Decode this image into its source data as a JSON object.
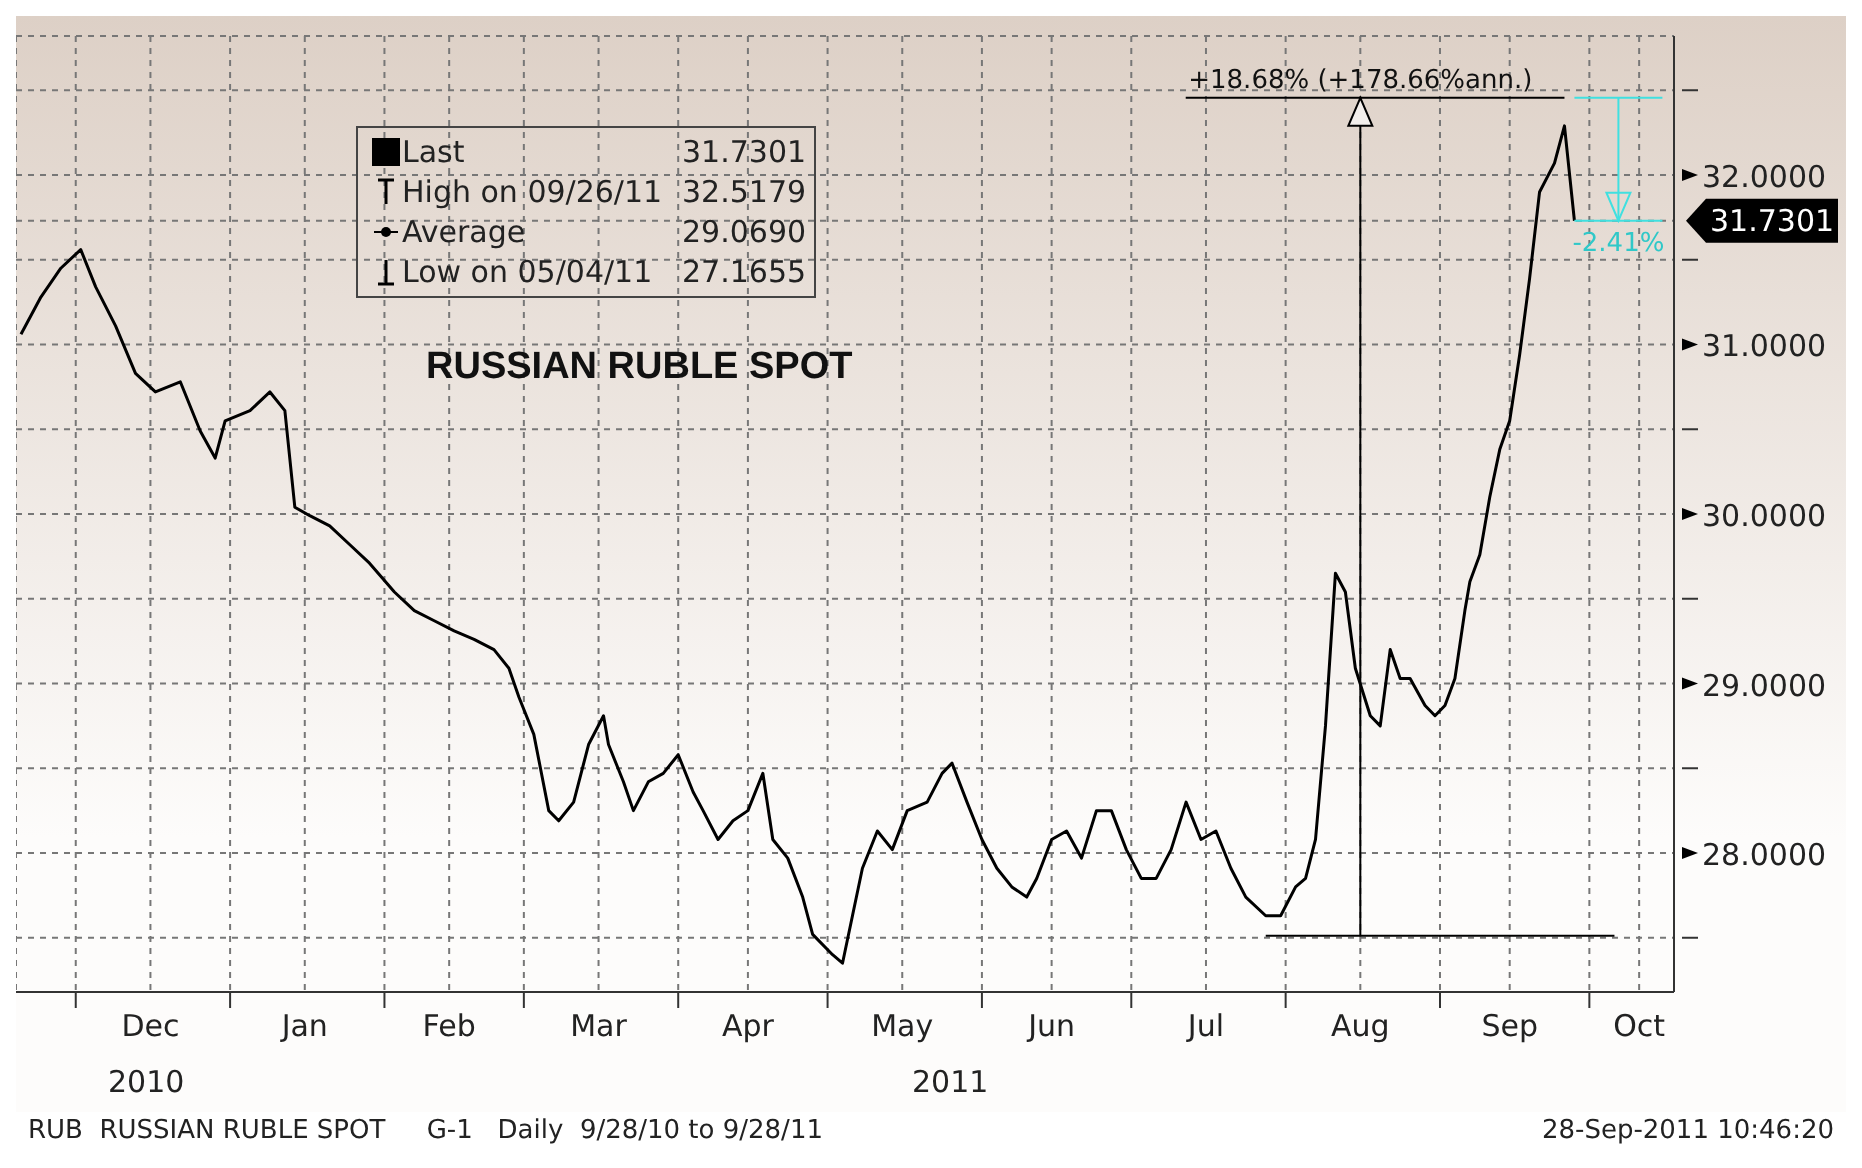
{
  "chart_data": {
    "type": "line",
    "title": "RUSSIAN RUBLE SPOT",
    "color": "#000000",
    "marker": "none",
    "grid": true,
    "x": [
      "2010-11-20",
      "2010-11-24",
      "2010-11-28",
      "2010-12-02",
      "2010-12-05",
      "2010-12-09",
      "2010-12-13",
      "2010-12-17",
      "2010-12-22",
      "2010-12-26",
      "2010-12-29",
      "2010-12-31",
      "2011-01-05",
      "2011-01-09",
      "2011-01-12",
      "2011-01-14",
      "2011-01-17",
      "2011-01-21",
      "2011-01-25",
      "2011-01-29",
      "2011-02-03",
      "2011-02-07",
      "2011-02-11",
      "2011-02-15",
      "2011-02-19",
      "2011-02-23",
      "2011-02-26",
      "2011-02-28",
      "2011-03-03",
      "2011-03-06",
      "2011-03-08",
      "2011-03-11",
      "2011-03-14",
      "2011-03-17",
      "2011-03-18",
      "2011-03-21",
      "2011-03-23",
      "2011-03-26",
      "2011-03-29",
      "2011-04-01",
      "2011-04-04",
      "2011-04-06",
      "2011-04-09",
      "2011-04-12",
      "2011-04-15",
      "2011-04-18",
      "2011-04-20",
      "2011-04-23",
      "2011-04-26",
      "2011-04-28",
      "2011-05-02",
      "2011-05-04",
      "2011-05-06",
      "2011-05-08",
      "2011-05-11",
      "2011-05-14",
      "2011-05-17",
      "2011-05-21",
      "2011-05-24",
      "2011-05-26",
      "2011-05-29",
      "2011-06-01",
      "2011-06-04",
      "2011-06-07",
      "2011-06-10",
      "2011-06-12",
      "2011-06-15",
      "2011-06-18",
      "2011-06-21",
      "2011-06-24",
      "2011-06-27",
      "2011-06-30",
      "2011-07-03",
      "2011-07-06",
      "2011-07-09",
      "2011-07-12",
      "2011-07-15",
      "2011-07-18",
      "2011-07-21",
      "2011-07-24",
      "2011-07-28",
      "2011-07-31",
      "2011-08-03",
      "2011-08-05",
      "2011-08-07",
      "2011-08-09",
      "2011-08-11",
      "2011-08-13",
      "2011-08-15",
      "2011-08-18",
      "2011-08-20",
      "2011-08-22",
      "2011-08-24",
      "2011-08-26",
      "2011-08-29",
      "2011-08-31",
      "2011-09-02",
      "2011-09-04",
      "2011-09-06",
      "2011-09-07",
      "2011-09-09",
      "2011-09-11",
      "2011-09-13",
      "2011-09-15",
      "2011-09-17",
      "2011-09-19",
      "2011-09-21",
      "2011-09-24",
      "2011-09-26",
      "2011-09-28"
    ],
    "values": [
      31.06,
      31.28,
      31.45,
      31.56,
      31.34,
      31.11,
      30.83,
      30.72,
      30.78,
      30.49,
      30.33,
      30.55,
      30.61,
      30.72,
      30.61,
      30.04,
      29.99,
      29.93,
      29.82,
      29.71,
      29.54,
      29.43,
      29.37,
      29.31,
      29.26,
      29.2,
      29.09,
      28.92,
      28.7,
      28.25,
      28.19,
      28.3,
      28.64,
      28.81,
      28.64,
      28.42,
      28.25,
      28.42,
      28.47,
      28.58,
      28.36,
      28.25,
      28.08,
      28.19,
      28.25,
      28.47,
      28.08,
      27.97,
      27.74,
      27.52,
      27.4,
      27.35,
      27.63,
      27.91,
      28.13,
      28.02,
      28.25,
      28.3,
      28.47,
      28.53,
      28.3,
      28.08,
      27.91,
      27.8,
      27.74,
      27.85,
      28.08,
      28.13,
      27.97,
      28.25,
      28.25,
      28.02,
      27.85,
      27.85,
      28.02,
      28.3,
      28.08,
      28.13,
      27.91,
      27.74,
      27.63,
      27.63,
      27.8,
      27.85,
      28.08,
      28.75,
      29.65,
      29.54,
      29.09,
      28.81,
      28.75,
      29.2,
      29.03,
      29.03,
      28.87,
      28.81,
      28.87,
      29.03,
      29.43,
      29.6,
      29.76,
      30.1,
      30.38,
      30.55,
      30.94,
      31.39,
      31.9,
      32.07,
      32.29,
      31.7301
    ],
    "xlim": [
      "2010-11-19",
      "2011-10-18"
    ],
    "xticks": [
      {
        "value": "2010-12-01",
        "label": null
      },
      {
        "value": "2010-12-16",
        "label": "Dec"
      },
      {
        "value": "2011-01-01",
        "label": null
      },
      {
        "value": "2011-01-16",
        "label": "Jan"
      },
      {
        "value": "2011-02-01",
        "label": null
      },
      {
        "value": "2011-02-14",
        "label": "Feb"
      },
      {
        "value": "2011-03-01",
        "label": null
      },
      {
        "value": "2011-03-16",
        "label": "Mar"
      },
      {
        "value": "2011-04-01",
        "label": null
      },
      {
        "value": "2011-04-15",
        "label": "Apr"
      },
      {
        "value": "2011-05-01",
        "label": null
      },
      {
        "value": "2011-05-16",
        "label": "May"
      },
      {
        "value": "2011-06-01",
        "label": null
      },
      {
        "value": "2011-06-15",
        "label": "Jun"
      },
      {
        "value": "2011-07-01",
        "label": null
      },
      {
        "value": "2011-07-16",
        "label": "Jul"
      },
      {
        "value": "2011-08-01",
        "label": null
      },
      {
        "value": "2011-08-16",
        "label": "Aug"
      },
      {
        "value": "2011-09-01",
        "label": null
      },
      {
        "value": "2011-09-15",
        "label": "Sep"
      },
      {
        "value": "2011-10-01",
        "label": null
      },
      {
        "value": "2011-10-11",
        "label": "Oct"
      }
    ],
    "ylim": [
      27.18,
      32.82
    ],
    "yticks": [
      {
        "value": 27.5,
        "label": null
      },
      {
        "value": 28,
        "label": "28.0000"
      },
      {
        "value": 28.5,
        "label": null
      },
      {
        "value": 29,
        "label": "29.0000"
      },
      {
        "value": 29.5,
        "label": null
      },
      {
        "value": 30,
        "label": "30.0000"
      },
      {
        "value": 30.5,
        "label": null
      },
      {
        "value": 31,
        "label": "31.0000"
      },
      {
        "value": 31.5,
        "label": null
      },
      {
        "value": 31.7301,
        "label": "31.7301"
      },
      {
        "value": 32,
        "label": "32.0000"
      },
      {
        "value": 32.5,
        "label": null
      }
    ],
    "ref_lines": [
      {
        "axis": "x",
        "value": "2011-08-16",
        "label": "+18.68% (+178.66%ann.)",
        "color": "#000000"
      }
    ],
    "annotations": [
      "Last",
      "31.7301",
      "High on 09/26/11",
      "32.5179",
      "Average",
      "29.0690",
      "Low on 05/04/11",
      "27.1655",
      "-2.41%",
      "2010",
      "2011",
      "RUB  RUSSIAN RUBLE SPOT     G-1   Daily  9/28/10 to 9/28/11",
      "28-Sep-2011 10:46:20"
    ]
  }
}
